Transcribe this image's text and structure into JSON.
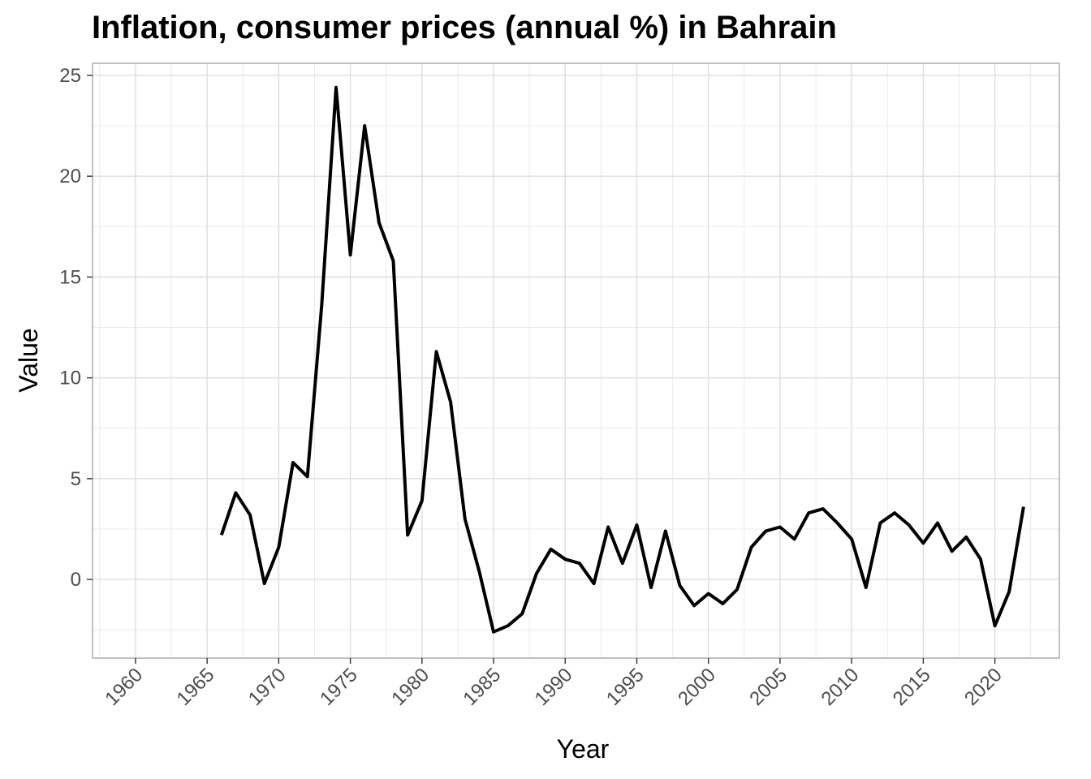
{
  "chart_data": {
    "type": "line",
    "title": "Inflation, consumer prices (annual %) in Bahrain",
    "xlabel": "Year",
    "ylabel": "Value",
    "xlim": [
      1957,
      2024.5
    ],
    "ylim": [
      -3.9,
      25.6
    ],
    "x_ticks": [
      1960,
      1965,
      1970,
      1975,
      1980,
      1985,
      1990,
      1995,
      2000,
      2005,
      2010,
      2015,
      2020
    ],
    "x_tick_labels": [
      "1960",
      "1965",
      "1970",
      "1975",
      "1980",
      "1985",
      "1990",
      "1995",
      "2000",
      "2005",
      "2010",
      "2015",
      "2020"
    ],
    "y_ticks": [
      0,
      5,
      10,
      15,
      20,
      25
    ],
    "y_tick_labels": [
      "0",
      "5",
      "10",
      "15",
      "20",
      "25"
    ],
    "grid": true,
    "line_color": "#000000",
    "series": [
      {
        "x": [
          1966,
          1967,
          1968,
          1969,
          1970,
          1971,
          1972,
          1973,
          1974,
          1975,
          1976,
          1977,
          1978,
          1979,
          1980,
          1981,
          1982,
          1983,
          1984,
          1985,
          1986,
          1987,
          1988,
          1989,
          1990,
          1991,
          1992,
          1993,
          1994,
          1995,
          1996,
          1997,
          1998,
          1999,
          2000,
          2001,
          2002,
          2003,
          2004,
          2005,
          2006,
          2007,
          2008,
          2009,
          2010,
          2011,
          2012,
          2013,
          2014,
          2015,
          2016,
          2017,
          2018,
          2019,
          2020,
          2021,
          2022
        ],
        "values": [
          2.2,
          4.3,
          3.2,
          -0.2,
          1.6,
          5.8,
          5.1,
          13.6,
          24.4,
          16.1,
          22.5,
          17.7,
          15.8,
          2.2,
          3.9,
          11.3,
          8.8,
          3.0,
          0.4,
          -2.6,
          -2.3,
          -1.7,
          0.3,
          1.5,
          1.0,
          0.8,
          -0.2,
          2.6,
          0.8,
          2.7,
          -0.4,
          2.4,
          -0.3,
          -1.3,
          -0.7,
          -1.2,
          -0.5,
          1.6,
          2.4,
          2.6,
          2.0,
          3.3,
          3.5,
          2.8,
          2.0,
          -0.4,
          2.8,
          3.3,
          2.7,
          1.8,
          2.8,
          1.4,
          2.1,
          1.0,
          -2.3,
          -0.6,
          3.6
        ]
      }
    ]
  }
}
